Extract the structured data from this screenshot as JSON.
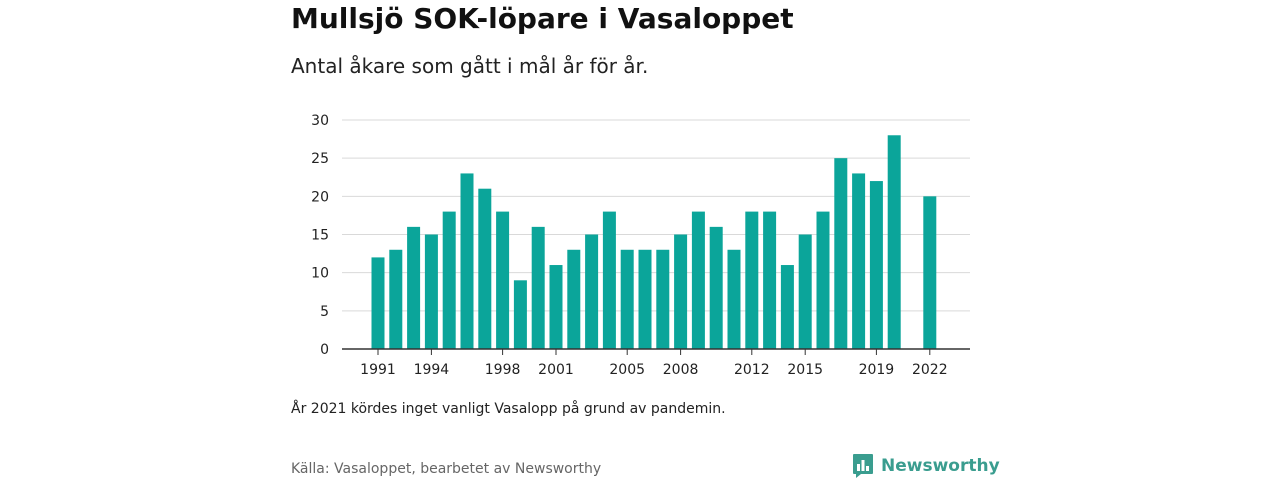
{
  "title": "Mullsjö SOK-löpare i Vasaloppet",
  "subtitle": "Antal åkare som gått i mål år för år.",
  "note": "År 2021 kördes inget vanligt Vasalopp på grund av pandemin.",
  "source": "Källa: Vasaloppet, bearbetet av Newsworthy",
  "logo": {
    "name": "Newsworthy",
    "icon": "newsworthy-bar-chart-icon"
  },
  "colors": {
    "bar": "#0ba59a",
    "grid": "#d9d9d9",
    "axis": "#333333",
    "brand": "#3a9d8f"
  },
  "chart_data": {
    "type": "bar",
    "x": [
      1991,
      1992,
      1993,
      1994,
      1995,
      1996,
      1997,
      1998,
      1999,
      2000,
      2001,
      2002,
      2003,
      2004,
      2005,
      2006,
      2007,
      2008,
      2009,
      2010,
      2011,
      2012,
      2013,
      2014,
      2015,
      2016,
      2017,
      2018,
      2019,
      2020,
      2021,
      2022
    ],
    "values": [
      12,
      13,
      16,
      15,
      18,
      23,
      21,
      18,
      9,
      16,
      11,
      13,
      15,
      18,
      13,
      13,
      13,
      15,
      18,
      16,
      13,
      18,
      18,
      11,
      15,
      18,
      25,
      23,
      22,
      28,
      null,
      20
    ],
    "x_tick_labels": [
      "1991",
      "1994",
      "1998",
      "2001",
      "2005",
      "2008",
      "2012",
      "2015",
      "2019",
      "2022"
    ],
    "y_ticks": [
      0,
      5,
      10,
      15,
      20,
      25,
      30
    ],
    "ylim": [
      0,
      30
    ],
    "grid": true,
    "xlabel": "",
    "ylabel": ""
  }
}
